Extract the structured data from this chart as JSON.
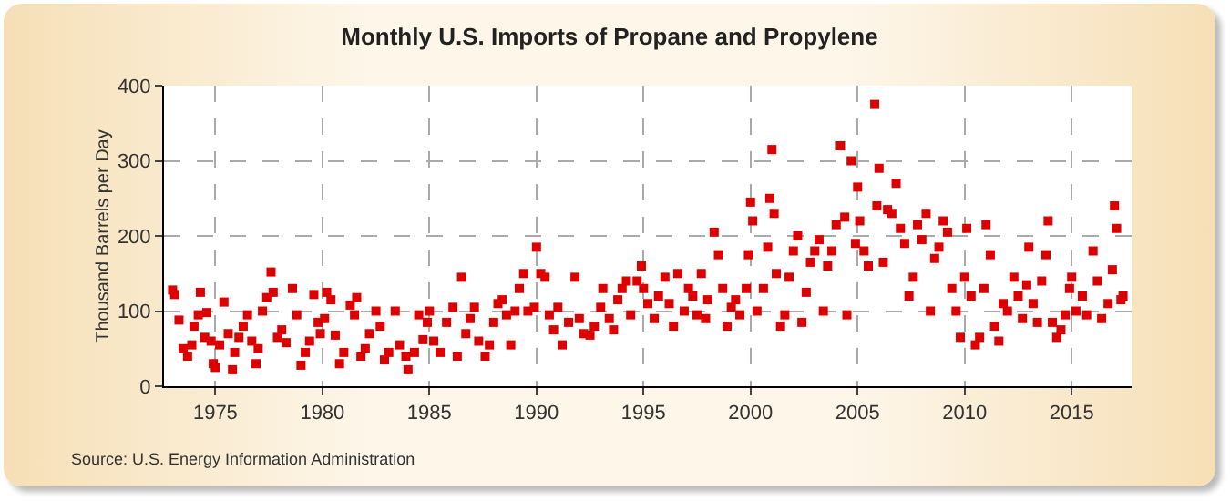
{
  "chart_data": {
    "type": "scatter",
    "title": "Monthly U.S. Imports of Propane and Propylene",
    "ylabel": "Thousand Barrels per Day",
    "annotations": [
      "Source: U.S. Energy Information Administration"
    ],
    "x": [
      1973.0,
      1973.1,
      1973.3,
      1973.5,
      1973.7,
      1973.9,
      1974.0,
      1974.2,
      1974.3,
      1974.5,
      1974.6,
      1974.8,
      1974.9,
      1975.0,
      1975.2,
      1975.4,
      1975.6,
      1975.8,
      1975.9,
      1976.1,
      1976.3,
      1976.5,
      1976.7,
      1976.9,
      1977.0,
      1977.2,
      1977.4,
      1977.6,
      1977.7,
      1977.9,
      1978.1,
      1978.3,
      1978.6,
      1978.8,
      1979.0,
      1979.2,
      1979.4,
      1979.6,
      1979.8,
      1979.9,
      1980.1,
      1980.2,
      1980.4,
      1980.6,
      1980.8,
      1981.0,
      1981.3,
      1981.5,
      1981.6,
      1981.8,
      1982.0,
      1982.2,
      1982.5,
      1982.7,
      1982.9,
      1983.1,
      1983.4,
      1983.6,
      1983.9,
      1984.0,
      1984.3,
      1984.5,
      1984.7,
      1984.9,
      1985.0,
      1985.2,
      1985.5,
      1985.8,
      1986.1,
      1986.3,
      1986.5,
      1986.7,
      1986.9,
      1987.1,
      1987.3,
      1987.6,
      1987.8,
      1988.0,
      1988.2,
      1988.4,
      1988.6,
      1988.8,
      1989.0,
      1989.2,
      1989.4,
      1989.6,
      1989.9,
      1990.0,
      1990.2,
      1990.4,
      1990.6,
      1990.8,
      1991.0,
      1991.2,
      1991.5,
      1991.8,
      1992.0,
      1992.2,
      1992.5,
      1992.7,
      1993.0,
      1993.1,
      1993.4,
      1993.6,
      1993.8,
      1994.0,
      1994.2,
      1994.4,
      1994.7,
      1994.9,
      1995.0,
      1995.2,
      1995.5,
      1995.7,
      1996.0,
      1996.2,
      1996.4,
      1996.6,
      1996.9,
      1997.1,
      1997.3,
      1997.5,
      1997.7,
      1997.9,
      1998.0,
      1998.3,
      1998.5,
      1998.7,
      1998.9,
      1999.1,
      1999.3,
      1999.5,
      1999.8,
      1999.9,
      2000.0,
      2000.1,
      2000.3,
      2000.6,
      2000.8,
      2000.9,
      2001.0,
      2001.1,
      2001.2,
      2001.4,
      2001.6,
      2001.8,
      2002.0,
      2002.2,
      2002.4,
      2002.6,
      2002.8,
      2003.0,
      2003.2,
      2003.4,
      2003.6,
      2003.8,
      2004.0,
      2004.2,
      2004.4,
      2004.5,
      2004.7,
      2004.9,
      2005.0,
      2005.1,
      2005.3,
      2005.5,
      2005.8,
      2005.9,
      2006.0,
      2006.2,
      2006.4,
      2006.6,
      2006.8,
      2007.0,
      2007.2,
      2007.4,
      2007.6,
      2007.8,
      2008.0,
      2008.2,
      2008.4,
      2008.6,
      2008.8,
      2009.0,
      2009.2,
      2009.4,
      2009.6,
      2009.8,
      2010.0,
      2010.1,
      2010.3,
      2010.5,
      2010.7,
      2010.9,
      2011.0,
      2011.2,
      2011.4,
      2011.6,
      2011.8,
      2012.0,
      2012.3,
      2012.5,
      2012.7,
      2012.9,
      2013.0,
      2013.2,
      2013.4,
      2013.6,
      2013.8,
      2013.9,
      2014.1,
      2014.3,
      2014.5,
      2014.7,
      2014.9,
      2015.0,
      2015.2,
      2015.5,
      2015.7,
      2016.0,
      2016.2,
      2016.4,
      2016.7,
      2016.9,
      2017.0,
      2017.1,
      2017.3,
      2017.4
    ],
    "series": [
      {
        "color": "#dd0000",
        "values": [
          128,
          122,
          88,
          50,
          40,
          55,
          80,
          95,
          125,
          65,
          98,
          60,
          30,
          25,
          55,
          112,
          70,
          22,
          45,
          65,
          80,
          95,
          60,
          30,
          50,
          100,
          118,
          152,
          125,
          65,
          75,
          58,
          130,
          95,
          28,
          45,
          60,
          122,
          85,
          70,
          90,
          125,
          115,
          68,
          30,
          45,
          108,
          95,
          118,
          40,
          50,
          70,
          100,
          80,
          35,
          45,
          100,
          55,
          40,
          22,
          45,
          95,
          62,
          85,
          100,
          60,
          45,
          85,
          105,
          40,
          145,
          70,
          90,
          105,
          60,
          40,
          55,
          85,
          110,
          115,
          95,
          55,
          100,
          130,
          150,
          100,
          105,
          185,
          150,
          145,
          95,
          75,
          105,
          55,
          85,
          145,
          90,
          70,
          68,
          80,
          105,
          130,
          90,
          75,
          115,
          130,
          140,
          95,
          140,
          160,
          130,
          110,
          90,
          120,
          145,
          110,
          80,
          150,
          100,
          130,
          120,
          95,
          150,
          90,
          115,
          205,
          175,
          130,
          80,
          105,
          115,
          95,
          130,
          175,
          245,
          220,
          100,
          130,
          185,
          250,
          315,
          230,
          150,
          80,
          95,
          145,
          180,
          200,
          85,
          125,
          165,
          180,
          195,
          100,
          160,
          180,
          215,
          320,
          225,
          95,
          300,
          190,
          265,
          220,
          180,
          160,
          375,
          240,
          290,
          165,
          235,
          230,
          270,
          210,
          190,
          120,
          145,
          215,
          195,
          230,
          100,
          170,
          185,
          220,
          205,
          130,
          100,
          65,
          145,
          210,
          120,
          55,
          65,
          130,
          215,
          175,
          80,
          60,
          110,
          100,
          145,
          120,
          90,
          135,
          185,
          110,
          85,
          140,
          175,
          220,
          85,
          65,
          75,
          95,
          130,
          145,
          100,
          120,
          95,
          180,
          140,
          90,
          110,
          155,
          240,
          210,
          115,
          120
        ]
      }
    ],
    "xlim": [
      1972.6,
      2017.8
    ],
    "xticks": [
      1975,
      1980,
      1985,
      1990,
      1995,
      2000,
      2005,
      2010,
      2015
    ],
    "ylim": [
      0,
      400
    ],
    "yticks": [
      0,
      100,
      200,
      300,
      400
    ],
    "grid": true,
    "marker": "square"
  }
}
